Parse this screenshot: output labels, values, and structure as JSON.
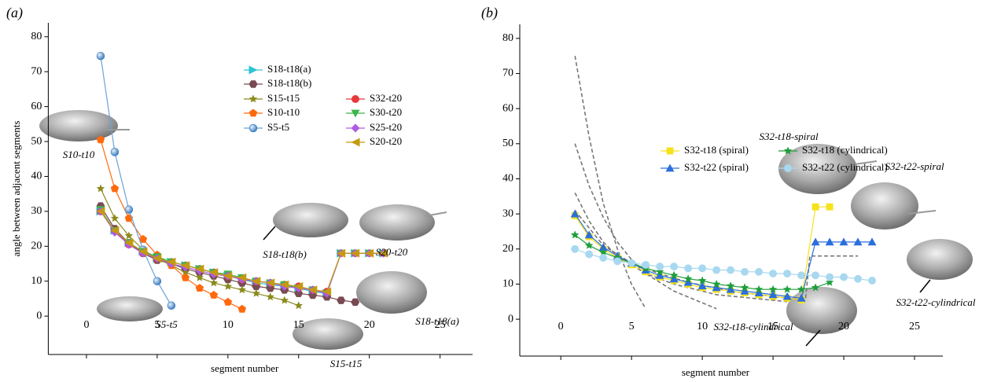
{
  "chart_data": [
    {
      "type": "line",
      "panel_label": "(a)",
      "xlabel": "segment number",
      "ylabel": "angle between adjacent segments",
      "xlim": [
        -2.7,
        27.3
      ],
      "ylim": [
        -11,
        84
      ],
      "xticks": [
        0,
        5,
        10,
        15,
        20,
        25
      ],
      "yticks": [
        0,
        10,
        20,
        30,
        40,
        50,
        60,
        70,
        80
      ],
      "series": [
        {
          "name": "S18-t18(a)",
          "color": "#2ec4d6",
          "marker": "triangle-right",
          "x": [
            1,
            2,
            3,
            4,
            5,
            6,
            7,
            8,
            9,
            10,
            11,
            12,
            13,
            14,
            15,
            16,
            17,
            18,
            19,
            20,
            21
          ],
          "values": [
            30,
            24.5,
            21,
            18.5,
            16.5,
            15.5,
            14.5,
            13.5,
            12.5,
            11.5,
            10.5,
            9.5,
            9,
            8.5,
            8,
            7,
            6.5,
            18,
            18,
            18,
            18
          ]
        },
        {
          "name": "S18-t18(b)",
          "color": "#7a4a52",
          "marker": "hexagon",
          "x": [
            1,
            2,
            3,
            4,
            5,
            6,
            7,
            8,
            9,
            10,
            11,
            12,
            13,
            14,
            15,
            16,
            17,
            18,
            19
          ],
          "values": [
            31.5,
            25,
            21,
            18,
            16,
            15,
            13.5,
            12.5,
            11.5,
            10.5,
            9.5,
            8.5,
            8,
            7.5,
            6.5,
            6,
            5.5,
            4.5,
            4
          ]
        },
        {
          "name": "S15-t15",
          "color": "#8a8a1e",
          "marker": "star",
          "x": [
            1,
            2,
            3,
            4,
            5,
            6,
            7,
            8,
            9,
            10,
            11,
            12,
            13,
            14,
            15
          ],
          "values": [
            36.5,
            28,
            23,
            19,
            16.5,
            14.5,
            12.5,
            11,
            9.5,
            8.5,
            7.5,
            6.5,
            5.5,
            4.5,
            3
          ]
        },
        {
          "name": "S10-t10",
          "color": "#ff6a0e",
          "marker": "pentagon",
          "x": [
            1,
            2,
            3,
            4,
            5,
            6,
            7,
            8,
            9,
            10,
            11
          ],
          "values": [
            50.5,
            36.5,
            28,
            22,
            17.5,
            14.5,
            11,
            8,
            6,
            4,
            2
          ]
        },
        {
          "name": "S5-t5",
          "color": "#6aa2d8",
          "marker": "sphere",
          "x": [
            1,
            2,
            3,
            4,
            5,
            6
          ],
          "values": [
            74.5,
            47,
            30.5,
            19,
            10,
            3
          ]
        },
        {
          "name": "S32-t20",
          "color": "#e8383d",
          "marker": "circle",
          "x": [
            1,
            2,
            3,
            4,
            5,
            6,
            7,
            8,
            9,
            10,
            11,
            12,
            13,
            14,
            15,
            16,
            17,
            18,
            19,
            20,
            21
          ],
          "values": [
            30,
            24.5,
            20.5,
            18,
            16.5,
            15.5,
            14.5,
            13.5,
            12.5,
            11.5,
            10.5,
            10,
            9.5,
            9,
            8.5,
            7.5,
            7,
            18,
            18,
            18,
            18
          ]
        },
        {
          "name": "S30-t20",
          "color": "#3bb54a",
          "marker": "triangle-down",
          "x": [
            1,
            2,
            3,
            4,
            5,
            6,
            7,
            8,
            9,
            10,
            11,
            12,
            13,
            14,
            15,
            16,
            17,
            18,
            19,
            20,
            21
          ],
          "values": [
            30.5,
            24.5,
            21,
            18.5,
            17,
            15.5,
            14.5,
            13.5,
            12.5,
            12,
            11,
            10,
            9.5,
            9,
            8,
            7.5,
            6.5,
            18,
            18,
            18,
            18
          ]
        },
        {
          "name": "S25-t20",
          "color": "#b05be0",
          "marker": "diamond",
          "x": [
            1,
            2,
            3,
            4,
            5,
            6,
            7,
            8,
            9,
            10,
            11,
            12,
            13,
            14,
            15,
            16,
            17,
            18,
            19,
            20,
            21
          ],
          "values": [
            30,
            24,
            20.5,
            18,
            16.5,
            15,
            14,
            13,
            12,
            11.5,
            10.5,
            10,
            9.5,
            8.5,
            8,
            7.5,
            6.5,
            18,
            18,
            18,
            18
          ]
        },
        {
          "name": "S20-t20",
          "color": "#c49a12",
          "marker": "triangle-left",
          "x": [
            1,
            2,
            3,
            4,
            5,
            6,
            7,
            8,
            9,
            10,
            11,
            12,
            13,
            14,
            15,
            16,
            17,
            18,
            19,
            20,
            21
          ],
          "values": [
            30,
            24.5,
            21,
            18.5,
            16.5,
            15.5,
            14.5,
            13.5,
            12.5,
            11.5,
            11,
            10,
            9.5,
            9,
            8.5,
            7.5,
            7,
            18,
            18,
            18,
            18
          ]
        }
      ],
      "annotations": [
        "S10-t10",
        "S5-t5",
        "S18-t18(b)",
        "S20-t20",
        "S18-t18(a)",
        "S15-t15"
      ]
    },
    {
      "type": "line",
      "panel_label": "(b)",
      "xlabel": "segment number",
      "xlim": [
        -2.9,
        27
      ],
      "ylim": [
        -10.5,
        84
      ],
      "xticks": [
        0,
        5,
        10,
        15,
        20,
        25
      ],
      "yticks": [
        0,
        10,
        20,
        30,
        40,
        50,
        60,
        70,
        80
      ],
      "series": [
        {
          "name": "S32-t18 (spiral)",
          "color": "#f5e21b",
          "marker": "square",
          "x": [
            1,
            2,
            3,
            4,
            5,
            6,
            7,
            8,
            9,
            10,
            11,
            12,
            13,
            14,
            15,
            16,
            17,
            18,
            19
          ],
          "values": [
            29.5,
            23.5,
            20,
            17.5,
            15.5,
            13.5,
            12,
            11,
            10,
            9,
            8.5,
            8,
            7.5,
            7,
            6.5,
            6,
            5.5,
            32,
            32
          ]
        },
        {
          "name": "S32-t22 (spiral)",
          "color": "#2a6fdb",
          "marker": "triangle-up",
          "x": [
            1,
            2,
            3,
            4,
            5,
            6,
            7,
            8,
            9,
            10,
            11,
            12,
            13,
            14,
            15,
            16,
            17,
            18,
            19,
            20,
            21,
            22
          ],
          "values": [
            30,
            24,
            20.5,
            18,
            16,
            14,
            12.5,
            11.5,
            10.5,
            9.5,
            9,
            8.5,
            8,
            7.5,
            7,
            6.5,
            6,
            22,
            22,
            22,
            22,
            22
          ]
        },
        {
          "name": "S32-t18 (cylindrical)",
          "color": "#1f9e3a",
          "marker": "star",
          "x": [
            1,
            2,
            3,
            4,
            5,
            6,
            7,
            8,
            9,
            10,
            11,
            12,
            13,
            14,
            15,
            16,
            17,
            18,
            19
          ],
          "values": [
            24,
            21,
            19,
            17.5,
            16,
            14.5,
            13.5,
            12.5,
            11.5,
            11,
            10,
            9.5,
            9,
            8.5,
            8.5,
            8.5,
            8.5,
            9,
            10.5
          ]
        },
        {
          "name": "S32-t22 (cylindrical)",
          "color": "#a8d8f0",
          "marker": "circle",
          "x": [
            1,
            2,
            3,
            4,
            5,
            6,
            7,
            8,
            9,
            10,
            11,
            12,
            13,
            14,
            15,
            16,
            17,
            18,
            19,
            20,
            21,
            22
          ],
          "values": [
            20,
            18.5,
            17.5,
            16.5,
            16,
            15.5,
            15,
            15,
            14.5,
            14.5,
            14,
            14,
            13.5,
            13.5,
            13,
            13,
            12.5,
            12.5,
            12,
            12,
            11.5,
            11
          ]
        }
      ],
      "fit_curves": [
        {
          "x": [
            1,
            2,
            3,
            4,
            5,
            6
          ],
          "values": [
            75,
            52,
            33,
            20,
            10,
            3
          ]
        },
        {
          "x": [
            1,
            2,
            3,
            4,
            5,
            6,
            8,
            11
          ],
          "values": [
            50,
            38,
            29,
            22,
            17,
            13,
            8,
            3
          ]
        },
        {
          "x": [
            1,
            2,
            3,
            4,
            6,
            8,
            11,
            16
          ],
          "values": [
            36,
            28,
            22,
            18,
            13,
            10,
            7,
            5
          ]
        },
        {
          "x": [
            1,
            3,
            5,
            7,
            9,
            12,
            15,
            17
          ],
          "values": [
            31,
            21,
            16,
            13,
            10.5,
            8,
            6.5,
            5.5
          ]
        },
        {
          "x": [
            17.3,
            17.6,
            21
          ],
          "values": [
            6,
            18,
            18
          ]
        }
      ],
      "annotations": [
        "S32-t18-spiral",
        "S32-t22-spiral",
        "S32-t22-cylindrical",
        "S32-t18-cylindrical"
      ]
    }
  ]
}
